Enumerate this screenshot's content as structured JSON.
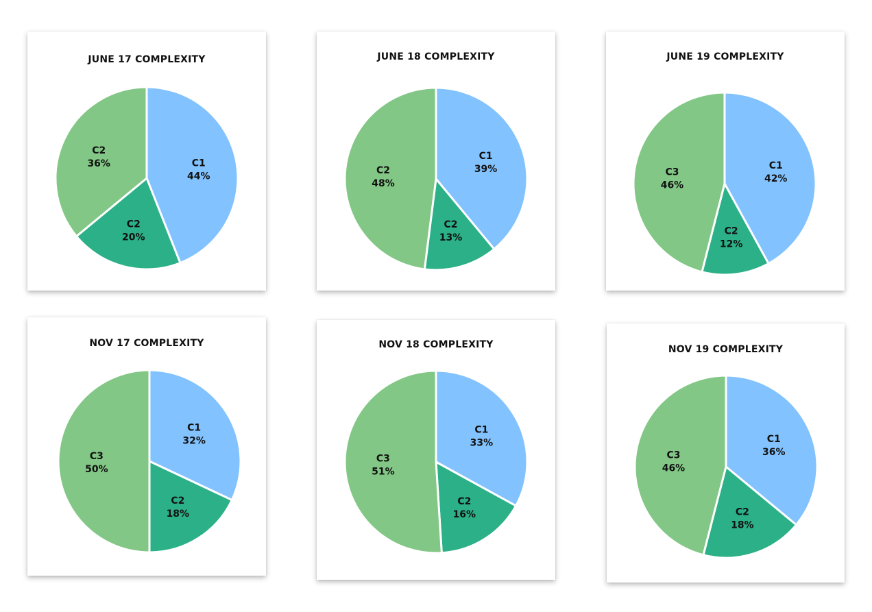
{
  "colors": {
    "c1": "#82c2fe",
    "c2": "#2bb087",
    "c3": "#82c785",
    "stroke": "#ffffff"
  },
  "chart_data": [
    {
      "type": "pie",
      "title": "JUNE 17 COMPLEXITY",
      "slices": [
        {
          "label": "C1",
          "value": 44,
          "display": "44%",
          "color": "#82c2fe"
        },
        {
          "label": "C2",
          "value": 20,
          "display": "20%",
          "color": "#2bb087"
        },
        {
          "label": "C2",
          "value": 36,
          "display": "36%",
          "color": "#82c785"
        }
      ]
    },
    {
      "type": "pie",
      "title": "JUNE 18 COMPLEXITY",
      "slices": [
        {
          "label": "C1",
          "value": 39,
          "display": "39%",
          "color": "#82c2fe"
        },
        {
          "label": "C2",
          "value": 13,
          "display": "13%",
          "color": "#2bb087"
        },
        {
          "label": "C2",
          "value": 48,
          "display": "48%",
          "color": "#82c785"
        }
      ]
    },
    {
      "type": "pie",
      "title": "JUNE 19 COMPLEXITY",
      "slices": [
        {
          "label": "C1",
          "value": 42,
          "display": "42%",
          "color": "#82c2fe"
        },
        {
          "label": "C2",
          "value": 12,
          "display": "12%",
          "color": "#2bb087"
        },
        {
          "label": "C3",
          "value": 46,
          "display": "46%",
          "color": "#82c785"
        }
      ]
    },
    {
      "type": "pie",
      "title": "NOV 17 COMPLEXITY",
      "slices": [
        {
          "label": "C1",
          "value": 32,
          "display": "32%",
          "color": "#82c2fe"
        },
        {
          "label": "C2",
          "value": 18,
          "display": "18%",
          "color": "#2bb087"
        },
        {
          "label": "C3",
          "value": 50,
          "display": "50%",
          "color": "#82c785"
        }
      ]
    },
    {
      "type": "pie",
      "title": "NOV 18 COMPLEXITY",
      "slices": [
        {
          "label": "C1",
          "value": 33,
          "display": "33%",
          "color": "#82c2fe"
        },
        {
          "label": "C2",
          "value": 16,
          "display": "16%",
          "color": "#2bb087"
        },
        {
          "label": "C3",
          "value": 51,
          "display": "51%",
          "color": "#82c785"
        }
      ]
    },
    {
      "type": "pie",
      "title": "NOV 19 COMPLEXITY",
      "slices": [
        {
          "label": "C1",
          "value": 36,
          "display": "36%",
          "color": "#82c2fe"
        },
        {
          "label": "C2",
          "value": 18,
          "display": "18%",
          "color": "#2bb087"
        },
        {
          "label": "C3",
          "value": 46,
          "display": "46%",
          "color": "#82c785"
        }
      ]
    }
  ]
}
